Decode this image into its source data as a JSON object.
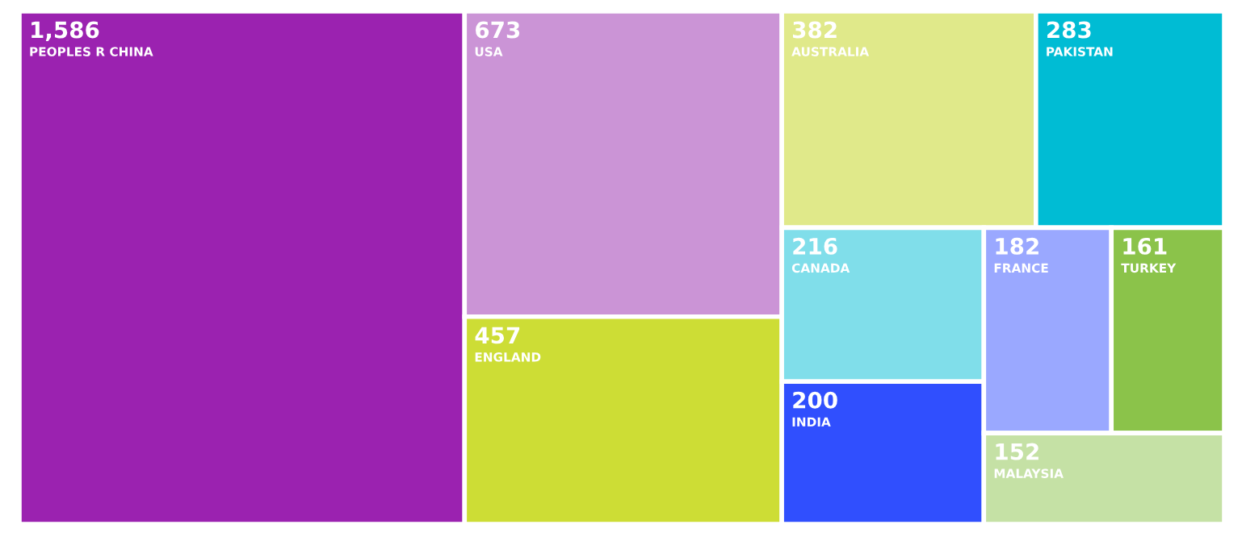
{
  "chart_data": {
    "type": "other",
    "categories": [
      "PEOPLES R CHINA",
      "USA",
      "ENGLAND",
      "AUSTRALIA",
      "PAKISTAN",
      "CANADA",
      "INDIA",
      "FRANCE",
      "TURKEY",
      "MALAYSIA"
    ],
    "values": [
      1586,
      673,
      457,
      382,
      283,
      216,
      200,
      182,
      161,
      152
    ],
    "value_labels": [
      "1,586",
      "673",
      "457",
      "382",
      "283",
      "216",
      "200",
      "182",
      "161",
      "152"
    ],
    "colors": [
      "#9b22b0",
      "#cb94d6",
      "#cddd35",
      "#e0e98a",
      "#00bcd4",
      "#80deea",
      "#304ffe",
      "#9aa8ff",
      "#8bc34a",
      "#c5e1a5"
    ]
  }
}
